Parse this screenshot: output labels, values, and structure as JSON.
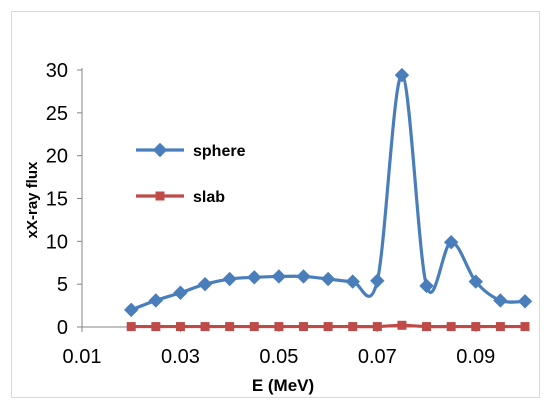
{
  "chart_data": {
    "type": "line",
    "title": "",
    "xlabel": "E (MeV)",
    "ylabel": "xX-ray flux",
    "xlim": [
      0.01,
      0.1
    ],
    "ylim": [
      0,
      30
    ],
    "xticks": [
      0.01,
      0.03,
      0.05,
      0.07,
      0.09
    ],
    "xtick_labels": [
      "0.01",
      "0.03",
      "0.05",
      "0.07",
      "0.09"
    ],
    "yticks": [
      0,
      5,
      10,
      15,
      20,
      25,
      30
    ],
    "ytick_labels": [
      "0",
      "5",
      "10",
      "15",
      "20",
      "25",
      "30"
    ],
    "grid": false,
    "legend_position": "left",
    "smooth": true,
    "x": [
      0.02,
      0.025,
      0.03,
      0.035,
      0.04,
      0.045,
      0.05,
      0.055,
      0.06,
      0.065,
      0.07,
      0.075,
      0.08,
      0.085,
      0.09,
      0.095,
      0.1
    ],
    "series": [
      {
        "name": "sphere",
        "color": "#4a7ebb",
        "marker": "diamond",
        "values": [
          2.0,
          3.1,
          4.0,
          5.0,
          5.6,
          5.8,
          5.9,
          5.9,
          5.6,
          5.3,
          5.4,
          29.4,
          4.8,
          9.9,
          5.3,
          3.1,
          3.0
        ]
      },
      {
        "name": "slab",
        "color": "#be4b48",
        "marker": "square",
        "values": [
          0.05,
          0.05,
          0.05,
          0.05,
          0.05,
          0.05,
          0.05,
          0.05,
          0.05,
          0.05,
          0.05,
          0.2,
          0.05,
          0.05,
          0.05,
          0.05,
          0.05
        ]
      }
    ]
  }
}
